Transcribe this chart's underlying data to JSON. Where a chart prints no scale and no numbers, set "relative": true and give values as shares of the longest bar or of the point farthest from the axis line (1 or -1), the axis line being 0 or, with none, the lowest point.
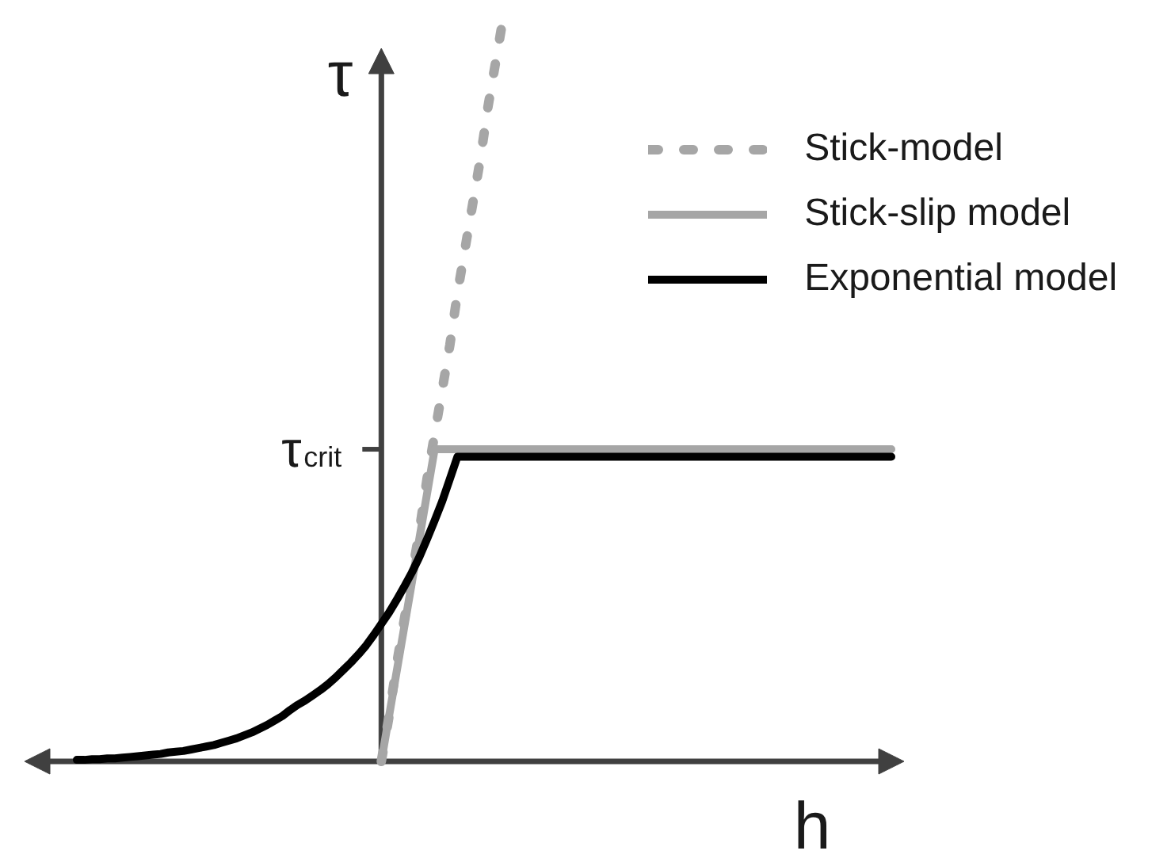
{
  "chart_data": {
    "type": "line",
    "relative": true,
    "xlabel": "h",
    "ylabel": "τ",
    "legend": "top right",
    "ref_lines": [
      {
        "axis": "y",
        "value": 0.42,
        "label": "τ$_{crit}$"
      }
    ],
    "categories": [
      null,
      null,
      null,
      null,
      null,
      null,
      null,
      null,
      null,
      null,
      null,
      null,
      null,
      null,
      null,
      null,
      null,
      null,
      null,
      null,
      null,
      null,
      null,
      null,
      null,
      null,
      null,
      null,
      null,
      null,
      null,
      null,
      null,
      null,
      null,
      null,
      null,
      null,
      null,
      null,
      null,
      null,
      null,
      null,
      null,
      null,
      null,
      null,
      null,
      null,
      null,
      null,
      null,
      null,
      null,
      null,
      null,
      null,
      null,
      null,
      null,
      null,
      null,
      null,
      null,
      null,
      null,
      null,
      null,
      null,
      null,
      null,
      null,
      null,
      null,
      null,
      null,
      null,
      null,
      null,
      null,
      null,
      null,
      null,
      null,
      null,
      null,
      null,
      null,
      null,
      null,
      null,
      null,
      null,
      null,
      null,
      null,
      null,
      null,
      null,
      null,
      null,
      null,
      null,
      null,
      null,
      null,
      null
    ],
    "series": [
      {
        "name": "Stick-model",
        "color": "#a6a6a6",
        "line_style": "dashed",
        "values": [
          null,
          null,
          null,
          null,
          null,
          null,
          null,
          null,
          null,
          null,
          null,
          null,
          null,
          null,
          null,
          null,
          null,
          null,
          null,
          null,
          null,
          null,
          null,
          null,
          null,
          null,
          null,
          null,
          null,
          null,
          null,
          null,
          null,
          null,
          null,
          null,
          null,
          null,
          null,
          null,
          0,
          0.06,
          0.13,
          0.19,
          0.25,
          0.31,
          0.38,
          0.44,
          0.5,
          0.56,
          0.63,
          0.69,
          0.75,
          0.81,
          0.88,
          0.94,
          1,
          null,
          null,
          null,
          null,
          null,
          null,
          null,
          null,
          null,
          null,
          null,
          null,
          null,
          null,
          null,
          null,
          null,
          null,
          null,
          null,
          null,
          null,
          null,
          null,
          null,
          null,
          null,
          null,
          null,
          null,
          null,
          null,
          null,
          null,
          null,
          null,
          null,
          null,
          null,
          null,
          null,
          null,
          null,
          null,
          null,
          null,
          null,
          null,
          null,
          null,
          null
        ]
      },
      {
        "name": "Stick-slip model",
        "color": "#a6a6a6",
        "line_style": "solid",
        "values": [
          null,
          null,
          null,
          null,
          null,
          null,
          null,
          null,
          null,
          null,
          null,
          null,
          null,
          null,
          null,
          null,
          null,
          null,
          null,
          null,
          null,
          null,
          null,
          null,
          null,
          null,
          null,
          null,
          null,
          null,
          null,
          null,
          null,
          null,
          null,
          null,
          null,
          null,
          null,
          null,
          0,
          0.06,
          0.12,
          0.18,
          0.24,
          0.3,
          0.36,
          0.42,
          0.42,
          0.42,
          0.42,
          0.42,
          0.42,
          0.42,
          0.42,
          0.42,
          0.42,
          0.42,
          0.42,
          0.42,
          0.42,
          0.42,
          0.42,
          0.42,
          0.42,
          0.42,
          0.42,
          0.42,
          0.42,
          0.42,
          0.42,
          0.42,
          0.42,
          0.42,
          0.42,
          0.42,
          0.42,
          0.42,
          0.42,
          0.42,
          0.42,
          0.42,
          0.42,
          0.42,
          0.42,
          0.42,
          0.42,
          0.42,
          0.42,
          0.42,
          0.42,
          0.42,
          0.42,
          0.42,
          0.42,
          0.42,
          0.42,
          0.42,
          0.42,
          0.42,
          0.42,
          0.42,
          0.42,
          0.42,
          0.42,
          0.42,
          0.42,
          0.42
        ]
      },
      {
        "name": "Exponential model",
        "color": "#000000",
        "line_style": "solid",
        "values": [
          0.002,
          0.002,
          0.003,
          0.003,
          0.004,
          0.004,
          0.005,
          0.006,
          0.007,
          0.008,
          0.009,
          0.01,
          0.012,
          0.013,
          0.014,
          0.016,
          0.018,
          0.02,
          0.022,
          0.025,
          0.028,
          0.031,
          0.035,
          0.039,
          0.044,
          0.049,
          0.055,
          0.061,
          0.069,
          0.076,
          0.082,
          0.089,
          0.096,
          0.104,
          0.113,
          0.123,
          0.133,
          0.144,
          0.156,
          0.17,
          0.185,
          0.2,
          0.217,
          0.235,
          0.254,
          0.275,
          0.299,
          0.324,
          0.35,
          0.38,
          0.41,
          0.41,
          0.41,
          0.41,
          0.41,
          0.41,
          0.41,
          0.41,
          0.41,
          0.41,
          0.41,
          0.41,
          0.41,
          0.41,
          0.41,
          0.41,
          0.41,
          0.41,
          0.41,
          0.41,
          0.41,
          0.41,
          0.41,
          0.41,
          0.41,
          0.41,
          0.41,
          0.41,
          0.41,
          0.41,
          0.41,
          0.41,
          0.41,
          0.41,
          0.41,
          0.41,
          0.41,
          0.41,
          0.41,
          0.41,
          0.41,
          0.41,
          0.41,
          0.41,
          0.41,
          0.41,
          0.41,
          0.41,
          0.41,
          0.41,
          0.41,
          0.41,
          0.41,
          0.41,
          0.41,
          0.41,
          0.41,
          0.41
        ]
      }
    ]
  }
}
